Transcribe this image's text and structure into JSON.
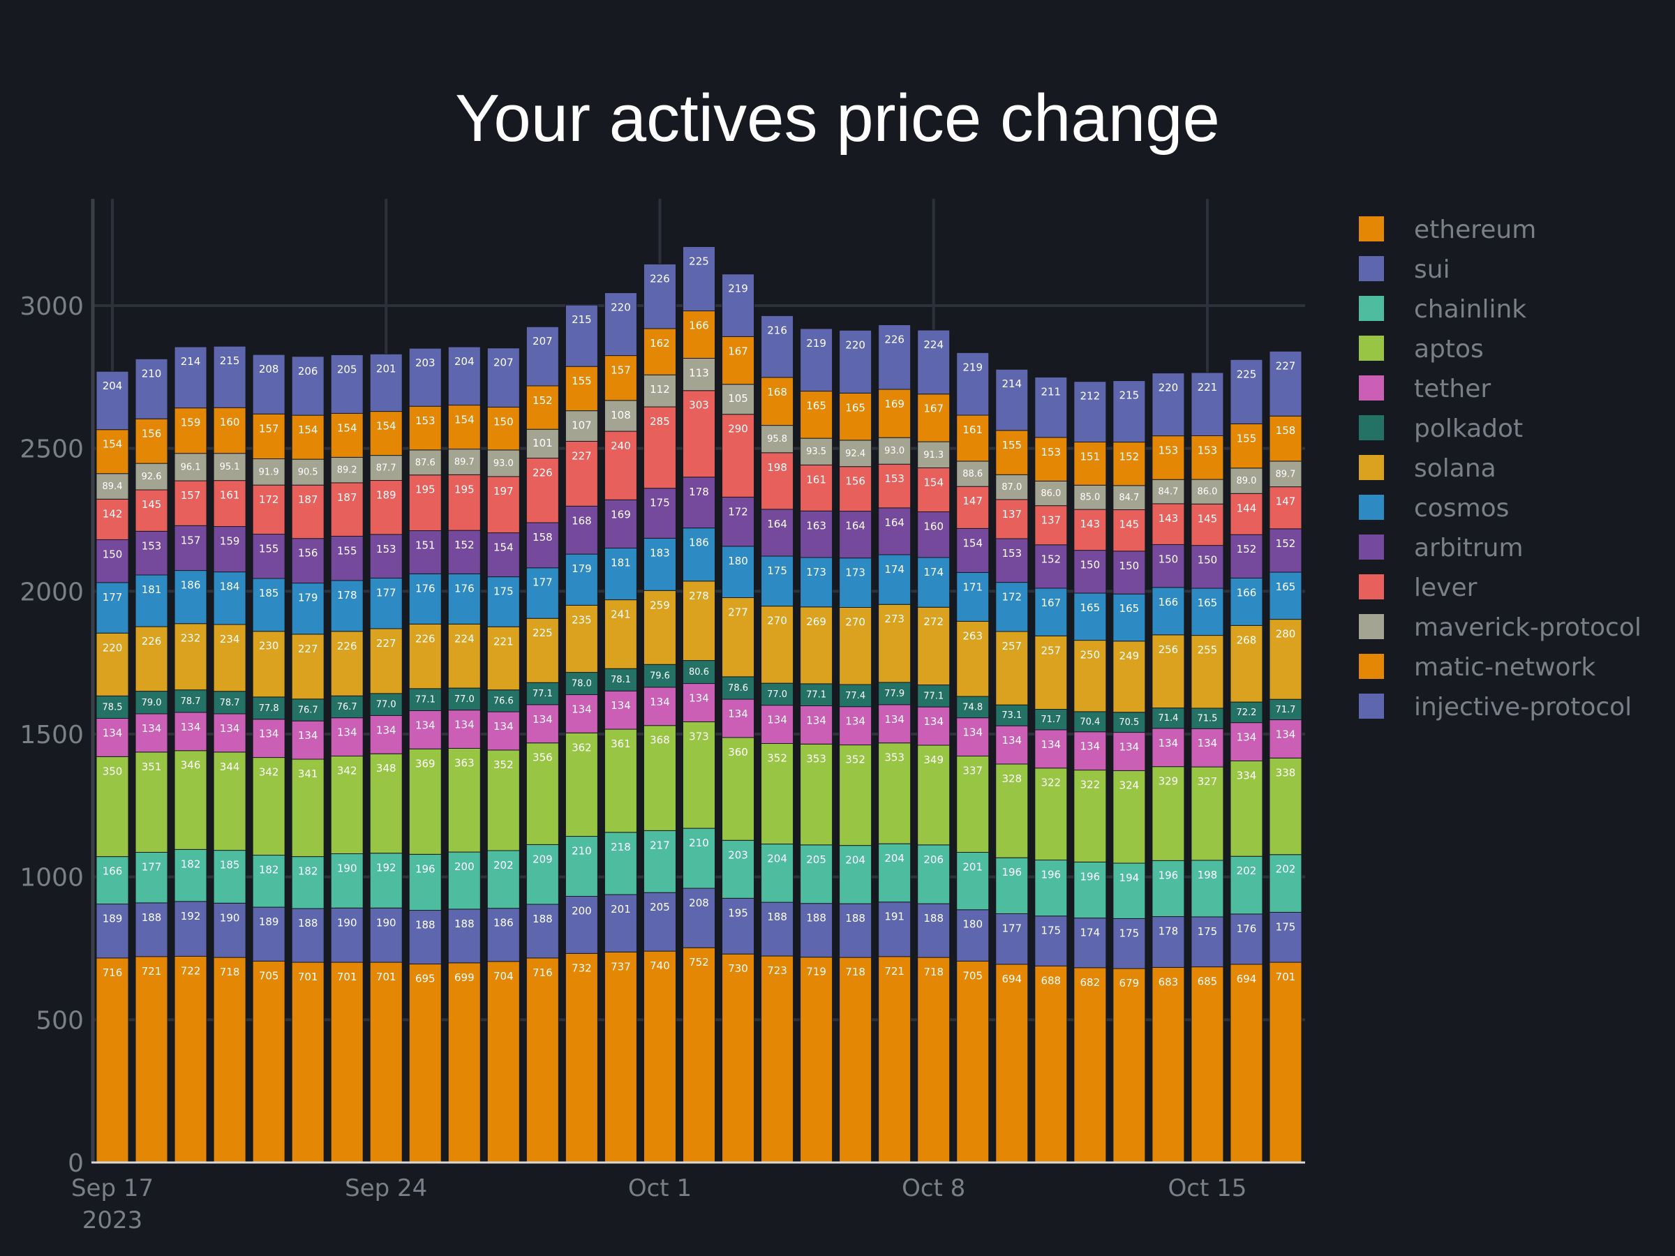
{
  "chart_data": {
    "type": "bar",
    "stacked": true,
    "title": "Your actives price change",
    "xlabel": "",
    "ylabel": "",
    "ylim": [
      0,
      3380
    ],
    "y_ticks": [
      0,
      500,
      1000,
      1500,
      2000,
      2500,
      3000
    ],
    "x_ticks": [
      {
        "index": 0,
        "label": "Sep 17",
        "sublabel": "2023"
      },
      {
        "index": 7,
        "label": "Sep 24"
      },
      {
        "index": 14,
        "label": "Oct 1"
      },
      {
        "index": 21,
        "label": "Oct 8"
      },
      {
        "index": 28,
        "label": "Oct 15"
      }
    ],
    "grid": true,
    "legend_position": "right",
    "categories": [
      "2023-09-17",
      "2023-09-18",
      "2023-09-19",
      "2023-09-20",
      "2023-09-21",
      "2023-09-22",
      "2023-09-23",
      "2023-09-24",
      "2023-09-25",
      "2023-09-26",
      "2023-09-27",
      "2023-09-28",
      "2023-09-29",
      "2023-09-30",
      "2023-10-01",
      "2023-10-02",
      "2023-10-03",
      "2023-10-04",
      "2023-10-05",
      "2023-10-06",
      "2023-10-07",
      "2023-10-08",
      "2023-10-09",
      "2023-10-10",
      "2023-10-11",
      "2023-10-12",
      "2023-10-13",
      "2023-10-14",
      "2023-10-15",
      "2023-10-16",
      "2023-10-17"
    ],
    "series": [
      {
        "name": "ethereum",
        "color": "#e38705",
        "values": [
          716,
          721,
          722,
          718,
          705,
          701,
          701,
          701,
          695,
          699,
          704,
          716,
          732,
          737,
          740,
          752,
          730,
          723,
          719,
          718,
          721,
          718,
          705,
          694,
          688,
          682,
          679,
          683,
          685,
          694,
          701
        ],
        "labels": [
          "716",
          "721",
          "722",
          "718",
          "705",
          "701",
          "701",
          "701",
          "695",
          "699",
          "704",
          "716",
          "732",
          "737",
          "740",
          "752",
          "730",
          "723",
          "719",
          "718",
          "721",
          "718",
          "705",
          "694",
          "688",
          "682",
          "679",
          "683",
          "685",
          "694",
          "701"
        ]
      },
      {
        "name": "sui",
        "color": "#5e67ae",
        "values": [
          189,
          188,
          192,
          190,
          189,
          188,
          190,
          190,
          188,
          188,
          186,
          188,
          200,
          201,
          205,
          208,
          195,
          188,
          188,
          188,
          191,
          188,
          180,
          177,
          175,
          174,
          175,
          178,
          175,
          176,
          175
        ],
        "labels": [
          "189",
          "188",
          "192",
          "190",
          "189",
          "188",
          "190",
          "190",
          "188",
          "188",
          "186",
          "188",
          "200",
          "201",
          "205",
          "208",
          "195",
          "188",
          "188",
          "188",
          "191",
          "188",
          "180",
          "177",
          "175",
          "174",
          "175",
          "178",
          "175",
          "176",
          "175"
        ]
      },
      {
        "name": "chainlink",
        "color": "#4dbc9f",
        "values": [
          166,
          177,
          182,
          185,
          182,
          182,
          190,
          192,
          196,
          200,
          202,
          209,
          210,
          218,
          217,
          210,
          203,
          204,
          205,
          204,
          204,
          206,
          201,
          196,
          196,
          196,
          194,
          196,
          198,
          202,
          202
        ],
        "labels": [
          "166",
          "177",
          "182",
          "185",
          "182",
          "182",
          "190",
          "192",
          "196",
          "200",
          "202",
          "209",
          "210",
          "218",
          "217",
          "210",
          "203",
          "204",
          "205",
          "204",
          "204",
          "206",
          "201",
          "196",
          "196",
          "196",
          "194",
          "196",
          "198",
          "202",
          "202"
        ]
      },
      {
        "name": "aptos",
        "color": "#99c544",
        "values": [
          350,
          351,
          346,
          344,
          342,
          341,
          342,
          348,
          369,
          363,
          352,
          356,
          362,
          361,
          368,
          373,
          360,
          352,
          353,
          352,
          353,
          349,
          337,
          328,
          322,
          322,
          324,
          329,
          327,
          334,
          338
        ],
        "labels": [
          "350",
          "351",
          "346",
          "344",
          "342",
          "341",
          "342",
          "348",
          "369",
          "363",
          "352",
          "356",
          "362",
          "361",
          "368",
          "373",
          "360",
          "352",
          "353",
          "352",
          "353",
          "349",
          "337",
          "328",
          "322",
          "322",
          "324",
          "329",
          "327",
          "334",
          "338"
        ]
      },
      {
        "name": "tether",
        "color": "#cb5fb6",
        "values": [
          134,
          134,
          134,
          134,
          134,
          134,
          134,
          134,
          134,
          134,
          134,
          134,
          134,
          134,
          134,
          134,
          134,
          134,
          134,
          134,
          134,
          134,
          134,
          134,
          134,
          134,
          134,
          134,
          134,
          134,
          134
        ],
        "labels": [
          "134",
          "134",
          "134",
          "134",
          "134",
          "134",
          "134",
          "134",
          "134",
          "134",
          "134",
          "134",
          "134",
          "134",
          "134",
          "134",
          "134",
          "134",
          "134",
          "134",
          "134",
          "134",
          "134",
          "134",
          "134",
          "134",
          "134",
          "134",
          "134",
          "134",
          "134"
        ]
      },
      {
        "name": "polkadot",
        "color": "#247266",
        "values": [
          78.5,
          79.0,
          78.7,
          78.7,
          77.8,
          76.7,
          76.7,
          77.0,
          77.1,
          77.0,
          76.6,
          77.1,
          78.0,
          78.1,
          79.6,
          80.6,
          78.6,
          77.0,
          77.1,
          77.4,
          77.9,
          77.1,
          74.8,
          73.1,
          71.7,
          70.4,
          70.5,
          71.4,
          71.5,
          72.2,
          71.7
        ],
        "labels": [
          "78.5",
          "79.0",
          "78.7",
          "78.7",
          "77.8",
          "76.7",
          "76.7",
          "77.0",
          "77.1",
          "77.0",
          "76.6",
          "77.1",
          "78.0",
          "78.1",
          "79.6",
          "80.6",
          "78.6",
          "77.0",
          "77.1",
          "77.4",
          "77.9",
          "77.1",
          "74.8",
          "73.1",
          "71.7",
          "70.4",
          "70.5",
          "71.4",
          "71.5",
          "72.2",
          "71.7"
        ]
      },
      {
        "name": "solana",
        "color": "#daa21e",
        "values": [
          220,
          226,
          232,
          234,
          230,
          227,
          226,
          227,
          226,
          224,
          221,
          225,
          235,
          241,
          259,
          278,
          277,
          270,
          269,
          270,
          273,
          272,
          263,
          257,
          257,
          250,
          249,
          256,
          255,
          268,
          280
        ],
        "labels": [
          "220",
          "226",
          "232",
          "234",
          "230",
          "227",
          "226",
          "227",
          "226",
          "224",
          "221",
          "225",
          "235",
          "241",
          "259",
          "278",
          "277",
          "270",
          "269",
          "270",
          "273",
          "272",
          "263",
          "257",
          "257",
          "250",
          "249",
          "256",
          "255",
          "268",
          "280"
        ]
      },
      {
        "name": "cosmos",
        "color": "#2d8ac2",
        "values": [
          177,
          181,
          186,
          184,
          185,
          179,
          178,
          177,
          176,
          176,
          175,
          177,
          179,
          181,
          183,
          186,
          180,
          175,
          173,
          173,
          174,
          174,
          171,
          172,
          167,
          165,
          165,
          166,
          165,
          166,
          165
        ],
        "labels": [
          "177",
          "181",
          "186",
          "184",
          "185",
          "179",
          "178",
          "177",
          "176",
          "176",
          "175",
          "177",
          "179",
          "181",
          "183",
          "186",
          "180",
          "175",
          "173",
          "173",
          "174",
          "174",
          "171",
          "172",
          "167",
          "165",
          "165",
          "166",
          "165",
          "166",
          "165"
        ]
      },
      {
        "name": "arbitrum",
        "color": "#754a9c",
        "values": [
          150,
          153,
          157,
          159,
          155,
          156,
          155,
          153,
          151,
          152,
          154,
          158,
          168,
          169,
          175,
          178,
          172,
          164,
          163,
          164,
          164,
          160,
          154,
          153,
          152,
          150,
          150,
          150,
          150,
          152,
          152
        ],
        "labels": [
          "150",
          "153",
          "157",
          "159",
          "155",
          "156",
          "155",
          "153",
          "151",
          "152",
          "154",
          "158",
          "168",
          "169",
          "175",
          "178",
          "172",
          "164",
          "163",
          "164",
          "164",
          "160",
          "154",
          "153",
          "152",
          "150",
          "150",
          "150",
          "150",
          "152",
          "152"
        ]
      },
      {
        "name": "lever",
        "color": "#e8605b",
        "values": [
          142,
          145,
          157,
          161,
          172,
          187,
          187,
          189,
          195,
          195,
          197,
          226,
          227,
          240,
          285,
          303,
          290,
          198,
          161,
          156,
          153,
          154,
          147,
          137,
          137,
          143,
          145,
          143,
          145,
          144,
          147
        ],
        "labels": [
          "142",
          "145",
          "157",
          "161",
          "172",
          "187",
          "187",
          "189",
          "195",
          "195",
          "197",
          "226",
          "227",
          "240",
          "285",
          "303",
          "290",
          "198",
          "161",
          "156",
          "153",
          "154",
          "147",
          "137",
          "137",
          "143",
          "145",
          "143",
          "145",
          "144",
          "147"
        ]
      },
      {
        "name": "maverick-protocol",
        "color": "#a3a592",
        "values": [
          89.4,
          92.6,
          96.1,
          95.1,
          91.9,
          90.5,
          89.2,
          87.7,
          87.6,
          89.7,
          93.0,
          101,
          107,
          108,
          112,
          113,
          105,
          95.8,
          93.5,
          92.4,
          93.0,
          91.3,
          88.6,
          87.0,
          86.0,
          85.0,
          84.7,
          84.7,
          86.0,
          89.0,
          89.7
        ],
        "labels": [
          "89.4",
          "92.6",
          "96.1",
          "95.1",
          "91.9",
          "90.5",
          "89.2",
          "87.7",
          "87.6",
          "89.7",
          "93.0",
          "101",
          "107",
          "108",
          "112",
          "113",
          "105",
          "95.8",
          "93.5",
          "92.4",
          "93.0",
          "91.3",
          "88.6",
          "87.0",
          "86.0",
          "85.0",
          "84.7",
          "84.7",
          "86.0",
          "89.0",
          "89.7"
        ]
      },
      {
        "name": "matic-network",
        "color": "#e38705",
        "values": [
          154,
          156,
          159,
          160,
          157,
          154,
          154,
          154,
          153,
          154,
          150,
          152,
          155,
          157,
          162,
          166,
          167,
          168,
          165,
          165,
          169,
          167,
          161,
          155,
          153,
          151,
          152,
          153,
          153,
          155,
          158
        ],
        "labels": [
          "154",
          "156",
          "159",
          "160",
          "157",
          "154",
          "154",
          "154",
          "153",
          "154",
          "150",
          "152",
          "155",
          "157",
          "162",
          "166",
          "167",
          "168",
          "165",
          "165",
          "169",
          "167",
          "161",
          "155",
          "153",
          "151",
          "152",
          "153",
          "153",
          "155",
          "158"
        ]
      },
      {
        "name": "injective-protocol",
        "color": "#5e67ae",
        "values": [
          204,
          210,
          214,
          215,
          208,
          206,
          205,
          201,
          203,
          204,
          207,
          207,
          215,
          220,
          226,
          225,
          219,
          216,
          219,
          220,
          226,
          224,
          219,
          214,
          211,
          212,
          215,
          220,
          221,
          225,
          227
        ],
        "labels": [
          "204",
          "210",
          "214",
          "215",
          "208",
          "206",
          "205",
          "201",
          "203",
          "204",
          "207",
          "207",
          "215",
          "220",
          "226",
          "225",
          "219",
          "216",
          "219",
          "220",
          "226",
          "224",
          "219",
          "214",
          "211",
          "212",
          "215",
          "220",
          "221",
          "225",
          "227"
        ]
      }
    ]
  }
}
